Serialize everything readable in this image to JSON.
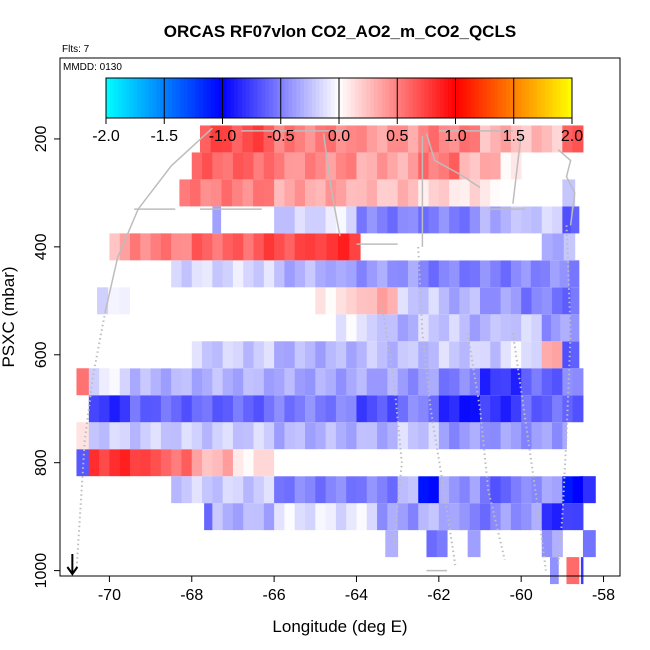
{
  "chart_data": {
    "type": "heatmap",
    "title": "ORCAS RF07vlon CO2_AO2_m_CO2_QCLS",
    "flights_label": "Flts: 7",
    "date_label": "MMDD: 0130",
    "xlabel": "Longitude (deg E)",
    "ylabel": "PSXC (mbar)",
    "xlim": [
      -71.2,
      -57.6
    ],
    "ylim": [
      1010,
      50
    ],
    "x_ticks": [
      -70,
      -68,
      -66,
      -64,
      -62,
      -60,
      -58
    ],
    "x_tick_labels": [
      "-70",
      "-68",
      "-66",
      "-64",
      "-62",
      "-60",
      "-58"
    ],
    "y_ticks": [
      200,
      400,
      600,
      800,
      1000
    ],
    "y_tick_labels": [
      "200",
      "400",
      "600",
      "800",
      "1000"
    ],
    "colorbar": {
      "min": -2.0,
      "max": 2.0,
      "ticks": [
        -2.0,
        -1.5,
        -1.0,
        -0.5,
        0.0,
        0.5,
        1.0,
        1.5,
        2.0
      ],
      "tick_labels": [
        "-2.0",
        "-1.5",
        "-1.0",
        "-0.5",
        "0.0",
        "0.5",
        "1.0",
        "1.5",
        "2.0"
      ],
      "colors": [
        "#00ffff",
        "#0000ff",
        "#ffffff",
        "#ff0000",
        "#ffff00"
      ]
    },
    "cell_width_deg": 0.25,
    "cell_height_mbar": 50,
    "rows": [
      {
        "p": 1000,
        "segments": [
          [
            -59.3,
            -59.1,
            -0.4
          ],
          [
            -58.9,
            -58.6,
            0.6
          ],
          [
            -58.55,
            -58.5,
            -0.8
          ]
        ]
      },
      {
        "p": 950,
        "segments": [
          [
            -63.3,
            -63.0,
            -0.3
          ],
          [
            -62.3,
            -61.8,
            -0.5
          ],
          [
            -61.3,
            -61.0,
            -0.3
          ],
          [
            -59.5,
            -59.0,
            -0.4
          ],
          [
            -58.5,
            -58.2,
            -0.6
          ]
        ]
      },
      {
        "p": 900,
        "segments": [
          [
            -67.7,
            -67.5,
            -0.6
          ],
          [
            -67.5,
            -66.0,
            -0.3
          ],
          [
            -66.0,
            -63.5,
            -0.1
          ],
          [
            -63.5,
            -62.5,
            -0.4
          ],
          [
            -62.5,
            -61.5,
            -0.3
          ],
          [
            -61.5,
            -60.5,
            -0.5
          ],
          [
            -60.5,
            -59.5,
            -0.4
          ],
          [
            -59.5,
            -58.5,
            -0.8
          ]
        ]
      },
      {
        "p": 850,
        "segments": [
          [
            -68.5,
            -66.0,
            -0.2
          ],
          [
            -66.0,
            -63.0,
            -0.5
          ],
          [
            -63.0,
            -62.5,
            -0.3
          ],
          [
            -62.5,
            -62.0,
            -1.0
          ],
          [
            -62.0,
            -61.0,
            -0.4
          ],
          [
            -61.0,
            -60.0,
            -0.6
          ],
          [
            -60.0,
            -59.0,
            -0.4
          ],
          [
            -59.0,
            -58.5,
            -1.0
          ],
          [
            -58.5,
            -58.2,
            -0.9
          ]
        ]
      },
      {
        "p": 800,
        "segments": [
          [
            -70.8,
            -70.5,
            -0.6
          ],
          [
            -70.5,
            -69.0,
            0.8
          ],
          [
            -69.0,
            -68.0,
            0.6
          ],
          [
            -68.0,
            -67.0,
            0.3
          ],
          [
            -67.0,
            -66.0,
            0.1
          ],
          [
            -66.0,
            -63.0,
            0.0
          ],
          [
            -63.0,
            -59.0,
            0.0
          ],
          [
            -59.0,
            -58.6,
            0.0
          ]
        ]
      },
      {
        "p": 750,
        "segments": [
          [
            -70.8,
            -70.5,
            0.2
          ],
          [
            -70.5,
            -66.0,
            -0.2
          ],
          [
            -66.0,
            -63.0,
            -0.3
          ],
          [
            -63.0,
            -62.0,
            -0.2
          ],
          [
            -62.0,
            -59.0,
            -0.4
          ],
          [
            -59.0,
            -58.9,
            -0.3
          ]
        ]
      },
      {
        "p": 700,
        "segments": [
          [
            -70.5,
            -69.5,
            -0.8
          ],
          [
            -69.5,
            -66.0,
            -0.6
          ],
          [
            -66.0,
            -64.0,
            -0.5
          ],
          [
            -64.0,
            -63.0,
            -0.7
          ],
          [
            -63.0,
            -62.0,
            -0.5
          ],
          [
            -62.0,
            -61.0,
            -0.9
          ],
          [
            -61.0,
            -60.0,
            -0.8
          ],
          [
            -60.0,
            -58.5,
            -0.6
          ]
        ]
      },
      {
        "p": 650,
        "segments": [
          [
            -70.8,
            -70.5,
            0.6
          ],
          [
            -70.5,
            -69.5,
            -0.1
          ],
          [
            -69.5,
            -66.0,
            -0.3
          ],
          [
            -66.0,
            -63.0,
            -0.35
          ],
          [
            -63.0,
            -62.0,
            -0.4
          ],
          [
            -62.0,
            -61.0,
            -0.5
          ],
          [
            -61.0,
            -60.0,
            -0.8
          ],
          [
            -60.0,
            -59.0,
            -0.6
          ],
          [
            -59.0,
            -58.5,
            -0.5
          ]
        ]
      },
      {
        "p": 600,
        "segments": [
          [
            -70.0,
            -68.0,
            0.0
          ],
          [
            -68.0,
            -66.0,
            -0.2
          ],
          [
            -66.0,
            -64.0,
            -0.3
          ],
          [
            -64.0,
            -62.0,
            -0.25
          ],
          [
            -62.0,
            -60.5,
            -0.2
          ],
          [
            -60.5,
            -59.5,
            -0.1
          ],
          [
            -59.5,
            -59.0,
            0.4
          ],
          [
            -59.0,
            -58.6,
            -0.6
          ]
        ]
      },
      {
        "p": 550,
        "segments": [
          [
            -64.5,
            -63.5,
            -0.1
          ],
          [
            -63.5,
            -62.5,
            -0.3
          ],
          [
            -62.5,
            -61.5,
            -0.2
          ],
          [
            -61.5,
            -60.5,
            -0.3
          ],
          [
            -60.5,
            -59.5,
            -0.2
          ],
          [
            -59.5,
            -58.6,
            -0.4
          ]
        ]
      },
      {
        "p": 500,
        "segments": [
          [
            -70.3,
            -69.5,
            -0.1
          ],
          [
            -69.5,
            -65.0,
            0.0
          ],
          [
            -65.0,
            -64.0,
            0.1
          ],
          [
            -64.0,
            -63.0,
            0.3
          ],
          [
            -63.0,
            -62.0,
            -0.2
          ],
          [
            -62.0,
            -61.0,
            -0.3
          ],
          [
            -61.0,
            -60.0,
            -0.4
          ],
          [
            -60.0,
            -59.0,
            -0.5
          ],
          [
            -59.0,
            -58.6,
            -0.6
          ]
        ]
      },
      {
        "p": 450,
        "segments": [
          [
            -70.0,
            -68.5,
            0.0
          ],
          [
            -68.5,
            -66.0,
            -0.15
          ],
          [
            -66.0,
            -64.5,
            -0.3
          ],
          [
            -64.5,
            -62.5,
            -0.4
          ],
          [
            -62.5,
            -60.0,
            -0.5
          ],
          [
            -60.0,
            -58.6,
            -0.45
          ]
        ]
      },
      {
        "p": 400,
        "segments": [
          [
            -70.0,
            -69.5,
            0.3
          ],
          [
            -69.5,
            -68.0,
            0.5
          ],
          [
            -68.0,
            -66.5,
            0.6
          ],
          [
            -66.5,
            -65.0,
            0.7
          ],
          [
            -65.0,
            -63.9,
            0.8
          ],
          [
            -63.9,
            -62.5,
            0.0
          ],
          [
            -62.5,
            -59.5,
            0.0
          ],
          [
            -59.5,
            -58.7,
            -0.3
          ]
        ]
      },
      {
        "p": 350,
        "segments": [
          [
            -67.5,
            -67.3,
            -0.3
          ],
          [
            -66.0,
            -65.0,
            -0.2
          ],
          [
            -65.0,
            -64.0,
            -0.1
          ],
          [
            -64.0,
            -62.5,
            -0.5
          ],
          [
            -62.5,
            -61.0,
            -0.5
          ],
          [
            -61.0,
            -60.0,
            -0.3
          ],
          [
            -60.0,
            -59.0,
            -0.2
          ],
          [
            -59.0,
            -58.6,
            -0.6
          ]
        ]
      },
      {
        "p": 300,
        "segments": [
          [
            -68.3,
            -66.0,
            0.5
          ],
          [
            -66.0,
            -64.0,
            0.35
          ],
          [
            -64.0,
            -62.5,
            0.25
          ],
          [
            -62.5,
            -61.5,
            0.15
          ],
          [
            -61.5,
            -60.5,
            0.1
          ],
          [
            -60.5,
            -59.0,
            0.0
          ],
          [
            -59.0,
            -58.7,
            -0.3
          ]
        ]
      },
      {
        "p": 250,
        "segments": [
          [
            -68.0,
            -66.0,
            0.6
          ],
          [
            -66.0,
            -64.0,
            0.45
          ],
          [
            -64.0,
            -62.5,
            0.35
          ],
          [
            -62.5,
            -61.5,
            0.55
          ],
          [
            -61.5,
            -60.5,
            0.3
          ],
          [
            -60.5,
            -60.0,
            0.1
          ]
        ]
      },
      {
        "p": 200,
        "segments": [
          [
            -67.8,
            -66.0,
            0.7
          ],
          [
            -66.0,
            -64.0,
            0.5
          ],
          [
            -64.0,
            -62.5,
            0.4
          ],
          [
            -62.5,
            -61.0,
            0.5
          ],
          [
            -61.0,
            -60.0,
            0.3
          ],
          [
            -60.0,
            -59.0,
            0.25
          ],
          [
            -59.0,
            -58.5,
            0.6
          ]
        ]
      }
    ],
    "flight_tracks": [
      {
        "style": "solid",
        "points": [
          [
            -67.5,
            180
          ],
          [
            -68.5,
            250
          ],
          [
            -69.3,
            330
          ],
          [
            -69.8,
            420
          ],
          [
            -70.1,
            520
          ]
        ]
      },
      {
        "style": "dotted",
        "points": [
          [
            -70.1,
            520
          ],
          [
            -70.4,
            640
          ],
          [
            -70.6,
            760
          ],
          [
            -70.7,
            880
          ],
          [
            -70.8,
            1000
          ]
        ]
      },
      {
        "style": "solid",
        "points": [
          [
            -62.4,
            195
          ],
          [
            -62.4,
            400
          ]
        ]
      },
      {
        "style": "solid",
        "points": [
          [
            -62.3,
            190
          ],
          [
            -62.1,
            240
          ],
          [
            -61.5,
            265
          ],
          [
            -61.0,
            290
          ]
        ]
      },
      {
        "style": "dotted",
        "points": [
          [
            -62.5,
            400
          ],
          [
            -62.4,
            560
          ],
          [
            -62.2,
            700
          ],
          [
            -61.9,
            840
          ],
          [
            -61.6,
            990
          ]
        ]
      },
      {
        "style": "solid",
        "points": [
          [
            -59.1,
            220
          ],
          [
            -58.8,
            240
          ],
          [
            -58.9,
            270
          ],
          [
            -58.7,
            300
          ],
          [
            -58.8,
            360
          ]
        ]
      },
      {
        "style": "dotted",
        "points": [
          [
            -58.9,
            360
          ],
          [
            -58.8,
            560
          ],
          [
            -58.9,
            750
          ],
          [
            -59.0,
            900
          ],
          [
            -59.1,
            990
          ]
        ]
      },
      {
        "style": "dotted",
        "points": [
          [
            -63.4,
            500
          ],
          [
            -63.1,
            640
          ],
          [
            -62.9,
            800
          ],
          [
            -63.1,
            960
          ]
        ]
      },
      {
        "style": "dotted",
        "points": [
          [
            -61.3,
            560
          ],
          [
            -61.0,
            700
          ],
          [
            -60.8,
            850
          ],
          [
            -60.4,
            980
          ]
        ]
      },
      {
        "style": "dotted",
        "points": [
          [
            -60.2,
            560
          ],
          [
            -59.9,
            720
          ],
          [
            -59.6,
            880
          ],
          [
            -59.4,
            1000
          ]
        ]
      },
      {
        "style": "solid",
        "points": [
          [
            -64.8,
            190
          ],
          [
            -64.6,
            300
          ],
          [
            -64.4,
            380
          ]
        ]
      },
      {
        "style": "solid",
        "points": [
          [
            -60.0,
            190
          ],
          [
            -60.2,
            320
          ]
        ]
      }
    ],
    "level_legs": [
      {
        "p": 185,
        "x1": -66.8,
        "x2": -64.2
      },
      {
        "p": 185,
        "x1": -62.0,
        "x2": -60.2
      },
      {
        "p": 330,
        "x1": -69.4,
        "x2": -68.4
      },
      {
        "p": 330,
        "x1": -67.8,
        "x2": -66.3
      },
      {
        "p": 330,
        "x1": -60.8,
        "x2": -59.9
      },
      {
        "p": 395,
        "x1": -64.0,
        "x2": -63.0
      },
      {
        "p": 1000,
        "x1": -62.3,
        "x2": -61.8
      }
    ],
    "arrow": {
      "x": -70.9,
      "p": 1010
    }
  }
}
